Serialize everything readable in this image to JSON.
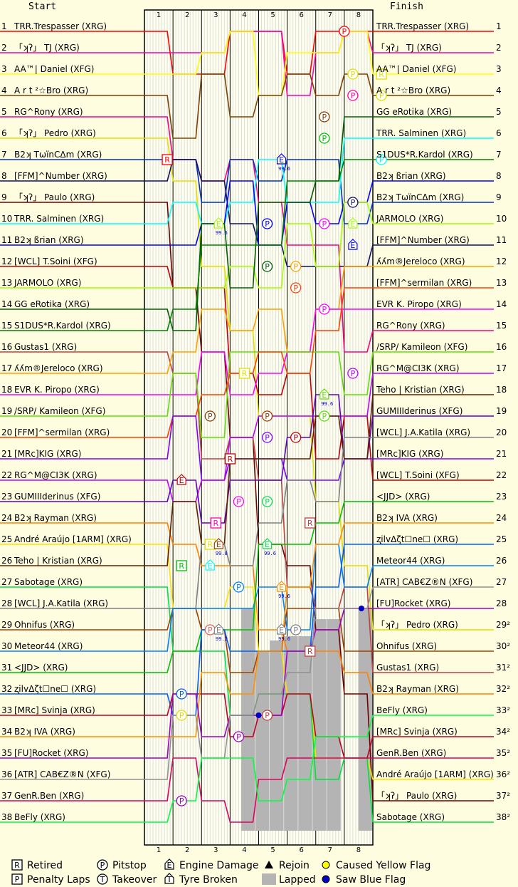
{
  "chart_data": {
    "type": "line",
    "title": "",
    "start_label": "Start",
    "finish_label": "Finish",
    "laps": [
      1,
      2,
      3,
      4,
      5,
      6,
      7,
      8
    ],
    "positions": [
      1,
      2,
      3,
      4,
      5,
      6,
      7,
      8,
      9,
      10,
      11,
      12,
      13,
      14,
      15,
      16,
      17,
      18,
      19,
      20,
      21,
      22,
      23,
      24,
      25,
      26,
      27,
      28,
      29,
      30,
      31,
      32,
      33,
      34,
      35,
      36,
      37,
      38
    ],
    "finish_position_labels": [
      "1",
      "2",
      "3",
      "4",
      "5",
      "6",
      "7",
      "8",
      "9",
      "10",
      "11",
      "12",
      "13",
      "14",
      "15",
      "16",
      "17",
      "18",
      "19",
      "20",
      "21",
      "22",
      "23",
      "24",
      "25",
      "26",
      "27",
      "28",
      "29²",
      "30²",
      "31²",
      "32²",
      "33²",
      "34²",
      "35²",
      "36²",
      "37²",
      "38²"
    ],
    "start_grid": [
      "TRR.Trespasser (XRG)",
      "「ʞʔ」 TJ (XRG)",
      "AA™| Daniel (XFG)",
      "A r t ²☆Bro (XRG)",
      "RG^Rony (XRG)",
      "「ʞʔ」 Pedro (XRG)",
      "B2ʞ TωїnCΔm (XRG)",
      "[FFM]^Number (XRG)",
      "「ʞʔ」 Paulo (XRG)",
      "TRR. Salminen (XRG)",
      "B2ʞ ßrian (XRG)",
      "[WCL] T.Soini (XFG)",
      "JARMOLO (XRG)",
      "GG eRotika (XRG)",
      "S1DUS*R.Kardol (XRG)",
      "Gustas1 (XRG)",
      "ʎʎm®Jereloco (XRG)",
      "EVR K. Piropo (XRG)",
      "/SRP/ Kamileon (XFG)",
      "[FFM]^sermilan (XRG)",
      "[MRc]KIG (XRG)",
      "RG^M@CI3K (XRG)",
      "GUMIIIderinus (XFG)",
      "B2ʞ Rayman (XRG)",
      "André Araújo [1ARM] (XRG)",
      "Teho | Kristian (XRG)",
      "Sabotage (XRG)",
      "[WCL] J.A.Katila (XRG)",
      "Ohnifus (XRG)",
      "Meteor44 (XRG)",
      "<JJD> (XRG)",
      "ʐilvΔζt☐ne☐ (XRG)",
      "[MRc] Svinja (XRG)",
      "B2ʞ IVA (XRG)",
      "[FU]Rocket (XRG)",
      "[ATR] CAB€Z®N (XFG)",
      "GenR.Ben (XRG)",
      "BeFly (XRG)"
    ],
    "finish_order": [
      "TRR.Trespasser (XRG)",
      "「ʞʔ」 TJ (XRG)",
      "AA™| Daniel (XFG)",
      "A r t ²☆Bro (XRG)",
      "GG eRotika (XRG)",
      "TRR. Salminen (XRG)",
      "S1DUS*R.Kardol (XRG)",
      "B2ʞ ßrian (XRG)",
      "B2ʞ TωїnCΔm (XRG)",
      "JARMOLO (XRG)",
      "[FFM]^Number (XRG)",
      "ʎʎm®Jereloco (XRG)",
      "[FFM]^sermilan (XRG)",
      "EVR K. Piropo (XRG)",
      "RG^Rony (XRG)",
      "/SRP/ Kamileon (XFG)",
      "RG^M@CI3K (XRG)",
      "Teho | Kristian (XRG)",
      "GUMIIIderinus (XFG)",
      "[WCL] J.A.Katila (XRG)",
      "[MRc]KIG (XRG)",
      "[WCL] T.Soini (XFG)",
      "<JJD> (XRG)",
      "B2ʞ IVA (XRG)",
      "ʐilvΔζt☐ne☐ (XRG)",
      "Meteor44 (XRG)",
      "[ATR] CAB€Z®N (XFG)",
      "[FU]Rocket (XRG)",
      "「ʞʔ」 Pedro (XRG)",
      "Ohnifus (XRG)",
      "Gustas1 (XRG)",
      "B2ʞ Rayman (XRG)",
      "BeFly (XRG)",
      "[MRc] Svinja (XRG)",
      "GenR.Ben (XRG)",
      "André Araújo [1ARM] (XRG)",
      "「ʞʔ」 Paulo (XRG)",
      "Sabotage (XRG)"
    ],
    "driver_colors": {
      "TRR.Trespasser (XRG)": "#ff0000",
      "「ʞʔ」 TJ (XRG)": "#ff00aa",
      "AA™| Daniel (XFG)": "#ffff00",
      "A r t ²☆Bro (XRG)": "#804000",
      "RG^Rony (XRG)": "#ff0080",
      "「ʞʔ」 Pedro (XRG)": "#e0e000",
      "B2ʞ TωїnCΔm (XRG)": "#0030c0",
      "[FFM]^Number (XRG)": "#101060",
      "「ʞʔ」 Paulo (XRG)": "#700000",
      "TRR. Salminen (XRG)": "#00ffff",
      "B2ʞ ßrian (XRG)": "#0000ff",
      "[WCL] T.Soini (XFG)": "#c00000",
      "JARMOLO (XRG)": "#a0ff00",
      "GG eRotika (XRG)": "#006000",
      "S1DUS*R.Kardol (XRG)": "#008000",
      "Gustas1 (XRG)": "#c04040",
      "ʎʎm®Jereloco (XRG)": "#ffa000",
      "EVR K. Piropo (XRG)": "#ff00ff",
      "/SRP/ Kamileon (XFG)": "#60e000",
      "[FFM]^sermilan (XRG)": "#ff4000",
      "[MRc]KIG (XRG)": "#8000ff",
      "RG^M@CI3K (XRG)": "#c000ff",
      "GUMIIIderinus (XFG)": "#6000c0",
      "B2ʞ Rayman (XRG)": "#ff8000",
      "André Araújo [1ARM] (XRG)": "#ffe000",
      "Teho | Kristian (XRG)": "#602000",
      "Sabotage (XRG)": "#00e040",
      "[WCL] J.A.Katila (XRG)": "#808080",
      "Ohnifus (XRG)": "#a04000",
      "Meteor44 (XRG)": "#0080ff",
      "<JJD> (XRG)": "#00c000",
      "ʐilvΔζt☐ne☐ (XRG)": "#0060ff",
      "[MRc] Svinja (XRG)": "#c00020",
      "B2ʞ IVA (XRG)": "#ff9000",
      "[FU]Rocket (XRG)": "#a000c0",
      "[ATR] CAB€Z®N (XFG)": "#909090",
      "GenR.Ben (XRG)": "#e00060",
      "BeFly (XRG)": "#00ff40"
    },
    "events": [
      {
        "lap": 7.0,
        "position": 1,
        "symbol": "P",
        "shape": "circle",
        "color": "#ff0000"
      },
      {
        "lap": 7.3,
        "position": 3,
        "symbol": "P",
        "shape": "circle",
        "color": "#e0e000"
      },
      {
        "lap": 7.3,
        "position": 4,
        "symbol": "P",
        "shape": "circle",
        "color": "#ff00aa"
      },
      {
        "lap": 8.3,
        "position": 3,
        "symbol": "R",
        "shape": "square",
        "color": "#e0e000"
      },
      {
        "lap": 8.3,
        "position": 4,
        "symbol": "P",
        "shape": "circle",
        "color": "#e0e000"
      },
      {
        "lap": 6.3,
        "position": 5,
        "symbol": "P",
        "shape": "circle",
        "color": "#804000"
      },
      {
        "lap": 6.3,
        "position": 6,
        "symbol": "P",
        "shape": "circle",
        "color": "#00c000"
      },
      {
        "lap": 0.8,
        "position": 7,
        "symbol": "R",
        "shape": "square",
        "color": "#ff0000"
      },
      {
        "lap": 4.8,
        "position": 7,
        "symbol": "E",
        "shape": "house",
        "color": "#0000ff",
        "note": "99.6"
      },
      {
        "lap": 8.3,
        "position": 7,
        "symbol": "P",
        "shape": "circle",
        "color": "#00ffff"
      },
      {
        "lap": 7.3,
        "position": 9,
        "symbol": "P",
        "shape": "circle",
        "color": "#101060"
      },
      {
        "lap": 2.6,
        "position": 10,
        "symbol": "E",
        "shape": "house",
        "color": "#a0ff00",
        "note": "99.6"
      },
      {
        "lap": 6.3,
        "position": 10,
        "symbol": "P",
        "shape": "circle",
        "color": "#ff00ff"
      },
      {
        "lap": 7.3,
        "position": 10,
        "symbol": "E",
        "shape": "house",
        "color": "#a0ff00"
      },
      {
        "lap": 4.3,
        "position": 10,
        "symbol": "P",
        "shape": "circle",
        "color": "#0000ff"
      },
      {
        "lap": 7.3,
        "position": 11,
        "symbol": "E",
        "shape": "house",
        "color": "#0000ff"
      },
      {
        "lap": 4.3,
        "position": 12,
        "symbol": "P",
        "shape": "circle",
        "color": "#006000"
      },
      {
        "lap": 5.3,
        "position": 12,
        "symbol": "P",
        "shape": "circle",
        "color": "#ffa000"
      },
      {
        "lap": 5.3,
        "position": 13,
        "symbol": "P",
        "shape": "circle",
        "color": "#ff4000"
      },
      {
        "lap": 6.3,
        "position": 14,
        "symbol": "P",
        "shape": "circle",
        "color": "#ff00ff"
      },
      {
        "lap": 3.5,
        "position": 17,
        "symbol": "R",
        "shape": "square",
        "color": "#e0e000"
      },
      {
        "lap": 7.3,
        "position": 17,
        "symbol": "P",
        "shape": "circle",
        "color": "#c000ff"
      },
      {
        "lap": 6.3,
        "position": 18,
        "symbol": "E",
        "shape": "house",
        "color": "#60e000",
        "note": "99.6"
      },
      {
        "lap": 6.3,
        "position": 19,
        "symbol": "P",
        "shape": "circle",
        "color": "#60e000"
      },
      {
        "lap": 2.3,
        "position": 19,
        "symbol": "P",
        "shape": "circle",
        "color": "#804000"
      },
      {
        "lap": 4.3,
        "position": 19,
        "symbol": "P",
        "shape": "circle",
        "color": "#a04000"
      },
      {
        "lap": 4.3,
        "position": 20,
        "symbol": "P",
        "shape": "circle",
        "color": "#8000ff"
      },
      {
        "lap": 5.3,
        "position": 20,
        "symbol": "P",
        "shape": "circle",
        "color": "#c00000"
      },
      {
        "lap": 3.0,
        "position": 21,
        "symbol": "R",
        "shape": "square",
        "color": "#c00000"
      },
      {
        "lap": 1.3,
        "position": 22,
        "symbol": "E",
        "shape": "house",
        "color": "#c00000"
      },
      {
        "lap": 3.3,
        "position": 23,
        "symbol": "P",
        "shape": "circle",
        "color": "#ff00ff"
      },
      {
        "lap": 4.3,
        "position": 23,
        "symbol": "P",
        "shape": "circle",
        "color": "#00e040"
      },
      {
        "lap": 2.5,
        "position": 24,
        "symbol": "R",
        "shape": "square",
        "color": "#ff00aa"
      },
      {
        "lap": 5.8,
        "position": 24,
        "symbol": "R",
        "shape": "square",
        "color": "#c04040"
      },
      {
        "lap": 2.3,
        "position": 25,
        "symbol": "R",
        "shape": "square",
        "color": "#e0e000"
      },
      {
        "lap": 2.6,
        "position": 25,
        "symbol": "E",
        "shape": "house",
        "color": "#a04000",
        "note": "99.8"
      },
      {
        "lap": 4.3,
        "position": 25,
        "symbol": "E",
        "shape": "house",
        "color": "#00e040",
        "note": "99.6"
      },
      {
        "lap": 1.3,
        "position": 26,
        "symbol": "R",
        "shape": "square",
        "color": "#00c000"
      },
      {
        "lap": 2.3,
        "position": 26,
        "symbol": "E",
        "shape": "house",
        "color": "#00ffff"
      },
      {
        "lap": 3.3,
        "position": 27,
        "symbol": "P",
        "shape": "circle",
        "color": "#0080ff"
      },
      {
        "lap": 4.8,
        "position": 27,
        "symbol": "E",
        "shape": "house",
        "color": "#ff9000",
        "note": "99.6"
      },
      {
        "lap": 2.3,
        "position": 29,
        "symbol": "P",
        "shape": "circle",
        "color": "#e06060"
      },
      {
        "lap": 2.6,
        "position": 29,
        "symbol": "E",
        "shape": "house",
        "color": "#808080",
        "note": "99.2"
      },
      {
        "lap": 4.8,
        "position": 29,
        "symbol": "E",
        "shape": "house",
        "color": "#808080",
        "note": "99.6"
      },
      {
        "lap": 5.3,
        "position": 29,
        "symbol": "P",
        "shape": "circle",
        "color": "#808080"
      },
      {
        "lap": 5.8,
        "position": 30,
        "symbol": "R",
        "shape": "square",
        "color": "#c04040"
      },
      {
        "lap": 1.3,
        "position": 32,
        "symbol": "P",
        "shape": "circle",
        "color": "#0060ff"
      },
      {
        "lap": 4.3,
        "position": 33,
        "symbol": "P",
        "shape": "circle",
        "color": "#c04040"
      },
      {
        "lap": 1.3,
        "position": 33,
        "symbol": "P",
        "shape": "circle",
        "color": "#e0e000"
      },
      {
        "lap": 3.3,
        "position": 34,
        "symbol": "P",
        "shape": "circle",
        "color": "#a000c0"
      },
      {
        "lap": 1.3,
        "position": 37,
        "symbol": "P",
        "shape": "circle",
        "color": "#a000c0"
      },
      {
        "lap": 4.0,
        "position": 33,
        "symbol": "",
        "shape": "dot",
        "color": "#0000c0"
      },
      {
        "lap": 7.6,
        "position": 28,
        "symbol": "",
        "shape": "dot",
        "color": "#0000c0"
      }
    ],
    "lapped": [
      {
        "lap": 3.5,
        "position_from": 28,
        "position_to": 38
      },
      {
        "lap": 4.0,
        "position_from": 30,
        "position_to": 38
      },
      {
        "lap": 4.5,
        "position_from": 29.5,
        "position_to": 38
      },
      {
        "lap": 5.0,
        "position_from": 29.3,
        "position_to": 38
      },
      {
        "lap": 5.5,
        "position_from": 29.3,
        "position_to": 38
      },
      {
        "lap": 6.0,
        "position_from": 28.5,
        "position_to": 38
      },
      {
        "lap": 6.5,
        "position_from": 28.5,
        "position_to": 38
      },
      {
        "lap": 7.6,
        "position_from": 28,
        "position_to": 38
      }
    ],
    "legend": [
      {
        "symbol": "R",
        "shape": "square",
        "label": "Retired"
      },
      {
        "symbol": "P",
        "shape": "circle",
        "label": "Pitstop"
      },
      {
        "symbol": "E",
        "shape": "house",
        "label": "Engine Damage"
      },
      {
        "symbol": "",
        "shape": "triangle",
        "label": "Rejoin"
      },
      {
        "symbol": "",
        "shape": "yellow-dot",
        "label": "Caused Yellow Flag"
      },
      {
        "symbol": "P",
        "shape": "square",
        "label": "Penalty Laps"
      },
      {
        "symbol": "T",
        "shape": "circle",
        "label": "Takeover"
      },
      {
        "symbol": "T",
        "shape": "house",
        "label": "Tyre Broken"
      },
      {
        "symbol": "",
        "shape": "gray-box",
        "label": "Lapped"
      },
      {
        "symbol": "",
        "shape": "blue-dot",
        "label": "Saw Blue Flag"
      }
    ],
    "colors": {
      "background": "#fffde0",
      "plot_background": "#ffffee",
      "lapped_fill": "#b4b4b4",
      "grid": "#000000"
    }
  }
}
